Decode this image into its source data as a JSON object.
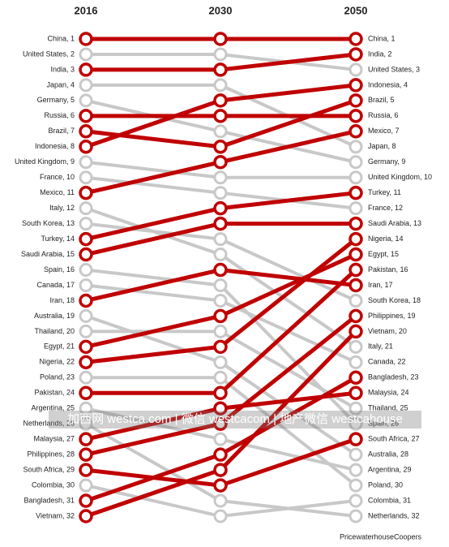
{
  "chart_data": {
    "type": "slope",
    "categories": [
      "2016",
      "2030",
      "2050"
    ],
    "ylim": [
      1,
      32
    ],
    "reversed": true,
    "source": "PricewaterhouseCoopers",
    "watermark": "加西网 westca.com | 微信 westcacom | 地产微信 westcahouse",
    "series": [
      {
        "name": "China",
        "color": "#c00000",
        "values": [
          1,
          1,
          1
        ],
        "value_labels": [
          "China, 1",
          null,
          "China, 1"
        ]
      },
      {
        "name": "United States",
        "color": "#c8c8c8",
        "values": [
          2,
          2,
          3
        ],
        "value_labels": [
          "United States, 2",
          null,
          "United States, 3"
        ]
      },
      {
        "name": "India",
        "color": "#c00000",
        "values": [
          3,
          3,
          2
        ],
        "value_labels": [
          "India, 3",
          null,
          "India, 2"
        ]
      },
      {
        "name": "Japan",
        "color": "#c8c8c8",
        "values": [
          4,
          4,
          8
        ],
        "value_labels": [
          "Japan, 4",
          null,
          "Japan, 8"
        ]
      },
      {
        "name": "Germany",
        "color": "#c8c8c8",
        "values": [
          5,
          7,
          9
        ],
        "value_labels": [
          "Germany, 5",
          null,
          "Germany, 9"
        ]
      },
      {
        "name": "Russia",
        "color": "#c00000",
        "values": [
          6,
          6,
          6
        ],
        "value_labels": [
          "Russia, 6",
          null,
          "Russia, 6"
        ]
      },
      {
        "name": "Brazil",
        "color": "#c00000",
        "values": [
          7,
          8,
          5
        ],
        "value_labels": [
          "Brazil, 7",
          null,
          "Brazil, 5"
        ]
      },
      {
        "name": "Indonesia",
        "color": "#c00000",
        "values": [
          8,
          5,
          4
        ],
        "value_labels": [
          "Indonesia, 8",
          null,
          "Indonesia, 4"
        ]
      },
      {
        "name": "United Kingdom",
        "color": "#c8c8c8",
        "values": [
          9,
          10,
          10
        ],
        "value_labels": [
          "United Kingdom, 9",
          null,
          "United Kingdom, 10"
        ]
      },
      {
        "name": "France",
        "color": "#c8c8c8",
        "values": [
          10,
          11,
          12
        ],
        "value_labels": [
          "France, 10",
          null,
          "France, 12"
        ]
      },
      {
        "name": "Mexico",
        "color": "#c00000",
        "values": [
          11,
          9,
          7
        ],
        "value_labels": [
          "Mexico, 11",
          null,
          "Mexico, 7"
        ]
      },
      {
        "name": "Italy",
        "color": "#c8c8c8",
        "values": [
          12,
          15,
          21
        ],
        "value_labels": [
          "Italy, 12",
          null,
          "Italy, 21"
        ]
      },
      {
        "name": "South Korea",
        "color": "#c8c8c8",
        "values": [
          13,
          14,
          18
        ],
        "value_labels": [
          "South Korea, 13",
          null,
          "South Korea, 18"
        ]
      },
      {
        "name": "Turkey",
        "color": "#c00000",
        "values": [
          14,
          12,
          11
        ],
        "value_labels": [
          "Turkey, 14",
          null,
          "Turkey, 11"
        ]
      },
      {
        "name": "Saudi Arabia",
        "color": "#c00000",
        "values": [
          15,
          13,
          13
        ],
        "value_labels": [
          "Saudi Arabia, 15",
          null,
          "Saudi Arabia, 13"
        ]
      },
      {
        "name": "Spain",
        "color": "#c8c8c8",
        "values": [
          16,
          17,
          26
        ],
        "value_labels": [
          "Spain, 16",
          null,
          "Spain, 26"
        ]
      },
      {
        "name": "Canada",
        "color": "#c8c8c8",
        "values": [
          17,
          18,
          22
        ],
        "value_labels": [
          "Canada, 17",
          null,
          "Canada, 22"
        ]
      },
      {
        "name": "Iran",
        "color": "#c00000",
        "values": [
          18,
          16,
          17
        ],
        "value_labels": [
          "Iran, 18",
          null,
          "Iran, 17"
        ]
      },
      {
        "name": "Australia",
        "color": "#c8c8c8",
        "values": [
          19,
          22,
          28
        ],
        "value_labels": [
          "Australia, 19",
          null,
          "Australia, 28"
        ]
      },
      {
        "name": "Thailand",
        "color": "#c8c8c8",
        "values": [
          20,
          20,
          25
        ],
        "value_labels": [
          "Thailand, 20",
          null,
          "Thailand, 25"
        ]
      },
      {
        "name": "Egypt",
        "color": "#c00000",
        "values": [
          21,
          19,
          15
        ],
        "value_labels": [
          "Egypt, 21",
          null,
          "Egypt, 15"
        ]
      },
      {
        "name": "Nigeria",
        "color": "#c00000",
        "values": [
          22,
          21,
          14
        ],
        "value_labels": [
          "Nigeria, 22",
          null,
          "Nigeria, 14"
        ]
      },
      {
        "name": "Poland",
        "color": "#c8c8c8",
        "values": [
          23,
          23,
          30
        ],
        "value_labels": [
          "Poland, 23",
          null,
          "Poland, 30"
        ]
      },
      {
        "name": "Pakistan",
        "color": "#c00000",
        "values": [
          24,
          24,
          16
        ],
        "value_labels": [
          "Pakistan, 24",
          null,
          "Pakistan, 16"
        ]
      },
      {
        "name": "Argentina",
        "color": "#c8c8c8",
        "values": [
          25,
          27,
          29
        ],
        "value_labels": [
          "Argentina, 25",
          null,
          "Argentina, 29"
        ]
      },
      {
        "name": "Netherlands",
        "color": "#c8c8c8",
        "values": [
          26,
          31,
          32
        ],
        "value_labels": [
          "Netherlands, 26",
          null,
          "Netherlands, 32"
        ]
      },
      {
        "name": "Malaysia",
        "color": "#c00000",
        "values": [
          27,
          25,
          24
        ],
        "value_labels": [
          "Malaysia, 27",
          null,
          "Malaysia, 24"
        ]
      },
      {
        "name": "Philippines",
        "color": "#c00000",
        "values": [
          28,
          26,
          19
        ],
        "value_labels": [
          "Philippines, 28",
          null,
          "Philippines, 19"
        ]
      },
      {
        "name": "South Africa",
        "color": "#c00000",
        "values": [
          29,
          30,
          27
        ],
        "value_labels": [
          "South Africa, 29",
          null,
          "South Africa, 27"
        ]
      },
      {
        "name": "Colombia",
        "color": "#c8c8c8",
        "values": [
          30,
          32,
          31
        ],
        "value_labels": [
          "Colombia, 30",
          null,
          "Colombia, 31"
        ]
      },
      {
        "name": "Bangladesh",
        "color": "#c00000",
        "values": [
          31,
          28,
          23
        ],
        "value_labels": [
          "Bangladesh, 31",
          null,
          "Bangladesh, 23"
        ]
      },
      {
        "name": "Vietnam",
        "color": "#c00000",
        "values": [
          32,
          29,
          20
        ],
        "value_labels": [
          "Vietnam, 32",
          null,
          "Vietnam, 20"
        ]
      }
    ]
  }
}
